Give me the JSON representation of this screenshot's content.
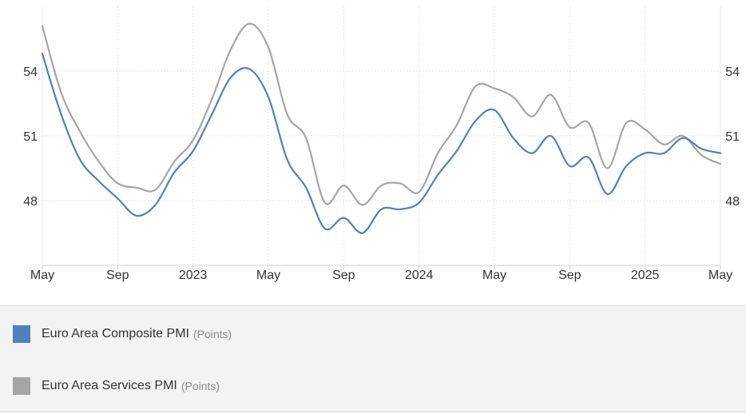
{
  "chart_data": {
    "type": "line",
    "x_ticks": [
      "May",
      "Sep",
      "2023",
      "May",
      "Sep",
      "2024",
      "May",
      "Sep",
      "2025",
      "May"
    ],
    "y_ticks": [
      48,
      51,
      54
    ],
    "ylim": [
      45.0,
      57.0
    ],
    "grid": true,
    "legend_position": "bottom",
    "x": [
      "2022-05",
      "2022-06",
      "2022-07",
      "2022-08",
      "2022-09",
      "2022-10",
      "2022-11",
      "2022-12",
      "2023-01",
      "2023-02",
      "2023-03",
      "2023-04",
      "2023-05",
      "2023-06",
      "2023-07",
      "2023-08",
      "2023-09",
      "2023-10",
      "2023-11",
      "2023-12",
      "2024-01",
      "2024-02",
      "2024-03",
      "2024-04",
      "2024-05",
      "2024-06",
      "2024-07",
      "2024-08",
      "2024-09",
      "2024-10",
      "2024-11",
      "2024-12",
      "2025-01",
      "2025-02",
      "2025-03",
      "2025-04",
      "2025-05"
    ],
    "series": [
      {
        "name": "Euro Area Composite PMI",
        "unit": "(Points)",
        "color": "#4f81bd",
        "values": [
          54.8,
          52.0,
          49.9,
          48.9,
          48.1,
          47.3,
          47.8,
          49.3,
          50.3,
          52.0,
          53.7,
          54.1,
          52.8,
          49.9,
          48.6,
          46.7,
          47.2,
          46.5,
          47.6,
          47.6,
          47.9,
          49.2,
          50.3,
          51.7,
          52.2,
          50.9,
          50.2,
          51.0,
          49.6,
          50.0,
          48.3,
          49.6,
          50.2,
          50.2,
          50.9,
          50.4,
          50.2
        ]
      },
      {
        "name": "Euro Area Services PMI",
        "unit": "(Points)",
        "color": "#a5a5a5",
        "values": [
          56.1,
          53.0,
          51.2,
          49.8,
          48.8,
          48.6,
          48.5,
          49.8,
          50.8,
          52.7,
          55.0,
          56.2,
          55.1,
          52.0,
          50.9,
          47.9,
          48.7,
          47.8,
          48.7,
          48.8,
          48.4,
          50.2,
          51.5,
          53.3,
          53.2,
          52.8,
          51.9,
          52.9,
          51.4,
          51.6,
          49.5,
          51.6,
          51.3,
          50.6,
          51.0,
          50.1,
          49.7
        ]
      }
    ]
  }
}
